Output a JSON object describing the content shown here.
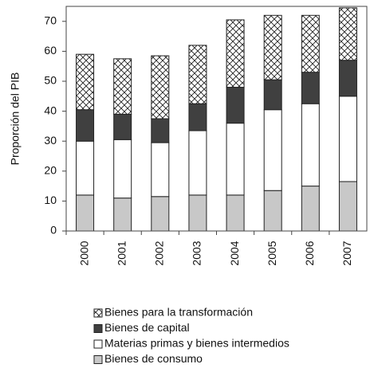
{
  "chart_data": {
    "type": "stacked-bar",
    "ylabel": "Proporción del PIB",
    "categories": [
      "2000",
      "2001",
      "2002",
      "2003",
      "2004",
      "2005",
      "2006",
      "2007"
    ],
    "series": [
      {
        "name": "Bienes de consumo",
        "color": "#c8c8c8",
        "values": [
          12,
          11,
          11.5,
          12,
          12,
          13.5,
          15,
          16.5
        ]
      },
      {
        "name": "Materias primas y bienes intermedios",
        "color": "#ffffff",
        "values": [
          18,
          19.5,
          18,
          21.5,
          24,
          27,
          27.5,
          28.5
        ]
      },
      {
        "name": "Bienes de capital",
        "color": "#404040",
        "values": [
          10.5,
          8.5,
          8,
          9,
          12,
          10,
          10.5,
          12
        ]
      },
      {
        "name": "Bienes para la transformación",
        "color": "#ffffff",
        "hatch": "crosshatch",
        "values": [
          18.5,
          18.5,
          21,
          19.5,
          22.5,
          21.5,
          19,
          17.5
        ]
      }
    ],
    "ylim": [
      0,
      75
    ],
    "yticks": [
      0,
      10,
      20,
      30,
      40,
      50,
      60,
      70
    ],
    "legend": "bottom"
  }
}
